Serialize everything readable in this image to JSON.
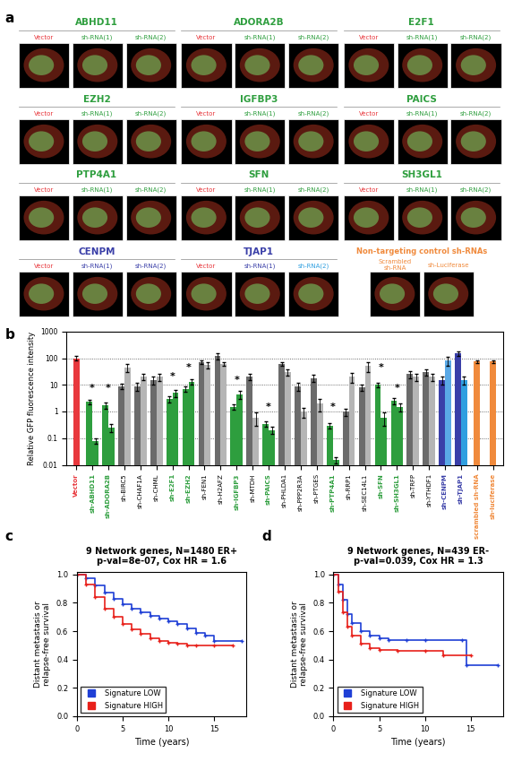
{
  "panel_a": {
    "label": "a",
    "groups": [
      {
        "gene": "ABHD11",
        "color": "#2e9e3e",
        "columns": [
          {
            "text": "Vector",
            "color": "#e8383d"
          },
          {
            "text": "sh-RNA(1)",
            "color": "#2e9e3e"
          },
          {
            "text": "sh-RNA(2)",
            "color": "#2e9e3e"
          }
        ]
      },
      {
        "gene": "ADORA2B",
        "color": "#2e9e3e",
        "columns": [
          {
            "text": "Vector",
            "color": "#e8383d"
          },
          {
            "text": "sh-RNA(1)",
            "color": "#2e9e3e"
          },
          {
            "text": "sh-RNA(2)",
            "color": "#2e9e3e"
          }
        ]
      },
      {
        "gene": "E2F1",
        "color": "#2e9e3e",
        "columns": [
          {
            "text": "Vector",
            "color": "#e8383d"
          },
          {
            "text": "sh-RNA(1)",
            "color": "#2e9e3e"
          },
          {
            "text": "sh-RNA(2)",
            "color": "#2e9e3e"
          }
        ]
      },
      {
        "gene": "EZH2",
        "color": "#2e9e3e",
        "columns": [
          {
            "text": "Vector",
            "color": "#e8383d"
          },
          {
            "text": "sh-RNA(1)",
            "color": "#2e9e3e"
          },
          {
            "text": "sh-RNA(2)",
            "color": "#2e9e3e"
          }
        ]
      },
      {
        "gene": "IGFBP3",
        "color": "#2e9e3e",
        "columns": [
          {
            "text": "Vector",
            "color": "#e8383d"
          },
          {
            "text": "sh-RNA(1)",
            "color": "#2e9e3e"
          },
          {
            "text": "sh-RNA(2)",
            "color": "#2e9e3e"
          }
        ]
      },
      {
        "gene": "PAICS",
        "color": "#2e9e3e",
        "columns": [
          {
            "text": "Vector",
            "color": "#e8383d"
          },
          {
            "text": "sh-RNA(1)",
            "color": "#2e9e3e"
          },
          {
            "text": "sh-RNA(2)",
            "color": "#2e9e3e"
          }
        ]
      },
      {
        "gene": "PTP4A1",
        "color": "#2e9e3e",
        "columns": [
          {
            "text": "Vector",
            "color": "#e8383d"
          },
          {
            "text": "sh-RNA(1)",
            "color": "#2e9e3e"
          },
          {
            "text": "sh-RNA(2)",
            "color": "#2e9e3e"
          }
        ]
      },
      {
        "gene": "SFN",
        "color": "#2e9e3e",
        "columns": [
          {
            "text": "Vector",
            "color": "#e8383d"
          },
          {
            "text": "sh-RNA(1)",
            "color": "#2e9e3e"
          },
          {
            "text": "sh-RNA(2)",
            "color": "#2e9e3e"
          }
        ]
      },
      {
        "gene": "SH3GL1",
        "color": "#2e9e3e",
        "columns": [
          {
            "text": "Vector",
            "color": "#e8383d"
          },
          {
            "text": "sh-RNA(1)",
            "color": "#2e9e3e"
          },
          {
            "text": "sh-RNA(2)",
            "color": "#2e9e3e"
          }
        ]
      },
      {
        "gene": "CENPM",
        "color": "#3a3fa8",
        "columns": [
          {
            "text": "Vector",
            "color": "#e8383d"
          },
          {
            "text": "sh-RNA(1)",
            "color": "#3a3fa8"
          },
          {
            "text": "sh-RNA(2)",
            "color": "#3a3fa8"
          }
        ]
      },
      {
        "gene": "TJAP1",
        "color": "#3a3fa8",
        "columns": [
          {
            "text": "Vector",
            "color": "#e8383d"
          },
          {
            "text": "sh-RNA(1)",
            "color": "#3a3fa8"
          },
          {
            "text": "sh-RNA(2)",
            "color": "#2f9fe0"
          }
        ]
      }
    ],
    "controls": {
      "title": "Non-targeting control sh-RNAs",
      "color": "#f08a3c",
      "columns": [
        "Scrambled\nsh-RNA",
        "sh-Luciferase"
      ]
    }
  },
  "chart_data": [
    {
      "type": "bar",
      "label": "b",
      "ylabel": "Relative GFP fluorescence intensity",
      "log": "y",
      "grid": true,
      "categories": [
        "Vector",
        "sh-ABHD11",
        "sh-ADORA2B",
        "sh-BIRC5",
        "sh-CHAF1A",
        "sh-CHML",
        "sh-E2F1",
        "sh-EZH2",
        "sh-FEN1",
        "sh-H2AFZ",
        "sh-IGFBP3",
        "sh-MTDH",
        "sh-PAICS",
        "sh-PHLDA1",
        "sh-PPP2R3A",
        "sh-PTGES",
        "sh-PTP4A1",
        "sh-RRP1",
        "sh-SEC14L1",
        "sh-SFN",
        "sh-SH3GL1",
        "sh-TRFP",
        "sh-YTHDF1",
        "sh-CENPM",
        "sh-TJAP1",
        "scrambled sh-RNA",
        "sh-luciferase"
      ],
      "series": [
        {
          "values": [
            100,
            2.3,
            1.7,
            9,
            9,
            15,
            3,
            7,
            70,
            120,
            1.5,
            20,
            0.35,
            60,
            9,
            18,
            0.3,
            1,
            8,
            10,
            2.5,
            25,
            30,
            15,
            150,
            75,
            75
          ],
          "errors": [
            20,
            0.5,
            0.4,
            2,
            3,
            5,
            0.8,
            1.5,
            10,
            30,
            0.3,
            5,
            0.08,
            10,
            3,
            5,
            0.07,
            0.3,
            2,
            2,
            0.6,
            8,
            8,
            5,
            30,
            10,
            10
          ],
          "colors": [
            "#e8383d",
            "#2e9e3e",
            "#2e9e3e",
            "#6b6b6b",
            "#6b6b6b",
            "#6b6b6b",
            "#2e9e3e",
            "#2e9e3e",
            "#6b6b6b",
            "#6b6b6b",
            "#2e9e3e",
            "#6b6b6b",
            "#2e9e3e",
            "#6b6b6b",
            "#6b6b6b",
            "#6b6b6b",
            "#2e9e3e",
            "#6b6b6b",
            "#6b6b6b",
            "#2e9e3e",
            "#2e9e3e",
            "#6b6b6b",
            "#6b6b6b",
            "#3a3fa8",
            "#3a3fa8",
            "#f08a3c",
            "#f08a3c"
          ]
        },
        {
          "values": [
            null,
            0.08,
            0.25,
            45,
            20,
            20,
            5,
            13,
            55,
            60,
            4.5,
            0.6,
            0.2,
            30,
            1,
            2,
            0.015,
            20,
            50,
            0.6,
            1.5,
            20,
            20,
            80,
            15,
            null,
            null
          ],
          "errors": [
            null,
            0.02,
            0.08,
            15,
            5,
            6,
            1.5,
            3,
            15,
            10,
            1.5,
            0.3,
            0.06,
            8,
            0.4,
            1,
            0.004,
            8,
            20,
            0.3,
            0.5,
            6,
            6,
            30,
            5,
            null,
            null
          ],
          "colors": [
            null,
            "#2e9e3e",
            "#2e9e3e",
            "#b5b5b5",
            "#b5b5b5",
            "#b5b5b5",
            "#2e9e3e",
            "#2e9e3e",
            "#b5b5b5",
            "#b5b5b5",
            "#2e9e3e",
            "#b5b5b5",
            "#2e9e3e",
            "#b5b5b5",
            "#b5b5b5",
            "#b5b5b5",
            "#2e9e3e",
            "#b5b5b5",
            "#b5b5b5",
            "#2e9e3e",
            "#2e9e3e",
            "#b5b5b5",
            "#b5b5b5",
            "#5aa9e6",
            "#2f9fe0",
            null,
            null
          ]
        }
      ],
      "annotations": [
        {
          "category": "sh-ABHD11",
          "y": 5,
          "text": "*"
        },
        {
          "category": "sh-ADORA2B",
          "y": 5,
          "text": "*"
        },
        {
          "category": "sh-E2F1",
          "y": 14,
          "text": "*"
        },
        {
          "category": "sh-EZH2",
          "y": 30,
          "text": "*"
        },
        {
          "category": "sh-IGFBP3",
          "y": 10,
          "text": "*"
        },
        {
          "category": "sh-PAICS",
          "y": 1,
          "text": "*"
        },
        {
          "category": "sh-PTP4A1",
          "y": 1,
          "text": "*"
        },
        {
          "category": "sh-SFN",
          "y": 30,
          "text": "*"
        },
        {
          "category": "sh-SH3GL1",
          "y": 5,
          "text": "*"
        }
      ],
      "ylim": [
        0.01,
        1000
      ],
      "yticks": [
        0.01,
        0.1,
        1,
        10,
        100,
        1000
      ]
    },
    {
      "type": "line",
      "label": "c",
      "title": "9 Network genes, N=1480 ER+\np-val=8e-07, Cox HR = 1.6",
      "xlabel": "Time (years)",
      "ylabel": "Distant metastasis or\nrelapse-free survival",
      "marker": "+",
      "legend": "lower left",
      "xlim": [
        0,
        18.5
      ],
      "xticks": [
        0,
        5,
        10,
        15
      ],
      "ylim": [
        0,
        1.02
      ],
      "yticks": [
        {
          "value": 0,
          "label": "0.0"
        },
        {
          "value": 0.2,
          "label": "0.2"
        },
        {
          "value": 0.4,
          "label": "0.4"
        },
        {
          "value": 0.6,
          "label": "0.6"
        },
        {
          "value": 0.8,
          "label": "0.8"
        },
        {
          "value": 1,
          "label": "1.0"
        }
      ],
      "series": [
        {
          "name": "Signature LOW",
          "color": "#1f3fd6",
          "x": [
            0,
            1,
            2,
            3,
            4,
            5,
            6,
            7,
            8,
            9,
            10,
            11,
            12,
            13,
            14,
            15,
            18
          ],
          "values": [
            1,
            0.97,
            0.92,
            0.87,
            0.83,
            0.79,
            0.76,
            0.73,
            0.71,
            0.69,
            0.67,
            0.65,
            0.62,
            0.59,
            0.57,
            0.53,
            0.53
          ]
        },
        {
          "name": "Signature HIGH",
          "color": "#e8201a",
          "x": [
            0,
            1,
            2,
            3,
            4,
            5,
            6,
            7,
            8,
            9,
            10,
            11,
            12,
            13,
            15,
            17
          ],
          "values": [
            1,
            0.93,
            0.84,
            0.76,
            0.7,
            0.65,
            0.61,
            0.58,
            0.55,
            0.53,
            0.52,
            0.51,
            0.5,
            0.5,
            0.5,
            0.5
          ]
        }
      ]
    },
    {
      "type": "line",
      "label": "d",
      "title": "9 Network genes, N=439 ER-\np-val=0.039, Cox HR = 1.3",
      "xlabel": "Time (years)",
      "ylabel": "Distant metastasis or\nrelapse-free survival",
      "marker": "+",
      "legend": "lower left",
      "xlim": [
        0,
        18.5
      ],
      "xticks": [
        0,
        5,
        10,
        15
      ],
      "ylim": [
        0,
        1.02
      ],
      "yticks": [
        {
          "value": 0,
          "label": "0.0"
        },
        {
          "value": 0.2,
          "label": "0.2"
        },
        {
          "value": 0.4,
          "label": "0.4"
        },
        {
          "value": 0.6,
          "label": "0.6"
        },
        {
          "value": 0.8,
          "label": "0.8"
        },
        {
          "value": 1,
          "label": "1.0"
        }
      ],
      "series": [
        {
          "name": "Signature LOW",
          "color": "#1f3fd6",
          "x": [
            0,
            0.5,
            1,
            1.5,
            2,
            3,
            4,
            5,
            6,
            8,
            10,
            14,
            14.5,
            18
          ],
          "values": [
            1,
            0.93,
            0.82,
            0.72,
            0.66,
            0.6,
            0.57,
            0.55,
            0.54,
            0.54,
            0.54,
            0.54,
            0.36,
            0.36
          ]
        },
        {
          "name": "Signature HIGH",
          "color": "#e8201a",
          "x": [
            0,
            0.5,
            1,
            1.5,
            2,
            3,
            4,
            5,
            7,
            10,
            12,
            15
          ],
          "values": [
            1,
            0.88,
            0.73,
            0.63,
            0.57,
            0.51,
            0.48,
            0.47,
            0.46,
            0.46,
            0.43,
            0.43
          ]
        }
      ]
    }
  ]
}
